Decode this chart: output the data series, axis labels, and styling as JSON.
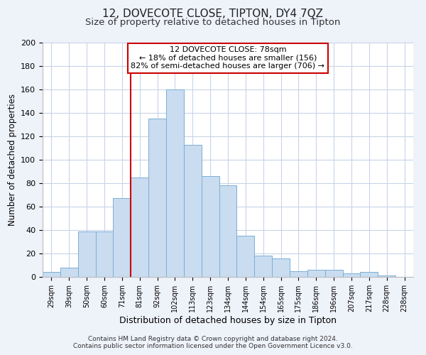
{
  "title": "12, DOVECOTE CLOSE, TIPTON, DY4 7QZ",
  "subtitle": "Size of property relative to detached houses in Tipton",
  "xlabel": "Distribution of detached houses by size in Tipton",
  "ylabel": "Number of detached properties",
  "bar_color": "#c9dcf0",
  "bar_edge_color": "#7bafd4",
  "categories": [
    "29sqm",
    "39sqm",
    "50sqm",
    "60sqm",
    "71sqm",
    "81sqm",
    "92sqm",
    "102sqm",
    "113sqm",
    "123sqm",
    "134sqm",
    "144sqm",
    "154sqm",
    "165sqm",
    "175sqm",
    "186sqm",
    "196sqm",
    "207sqm",
    "217sqm",
    "228sqm",
    "238sqm"
  ],
  "values": [
    4,
    8,
    39,
    39,
    67,
    85,
    135,
    160,
    113,
    86,
    78,
    35,
    18,
    16,
    5,
    6,
    6,
    3,
    4,
    1,
    0
  ],
  "ylim": [
    0,
    200
  ],
  "yticks": [
    0,
    20,
    40,
    60,
    80,
    100,
    120,
    140,
    160,
    180,
    200
  ],
  "property_line_label": "12 DOVECOTE CLOSE: 78sqm",
  "annotation_smaller": "← 18% of detached houses are smaller (156)",
  "annotation_larger": "82% of semi-detached houses are larger (706) →",
  "footer1": "Contains HM Land Registry data © Crown copyright and database right 2024.",
  "footer2": "Contains public sector information licensed under the Open Government Licence v3.0.",
  "background_color": "#eef2f9",
  "plot_bg_color": "#ffffff",
  "grid_color": "#c8d4e8",
  "title_fontsize": 11,
  "subtitle_fontsize": 9.5,
  "xlabel_fontsize": 9,
  "ylabel_fontsize": 8.5,
  "annotation_box_edge": "#cc0000",
  "annotation_line_color": "#cc0000",
  "property_line_index": 5
}
